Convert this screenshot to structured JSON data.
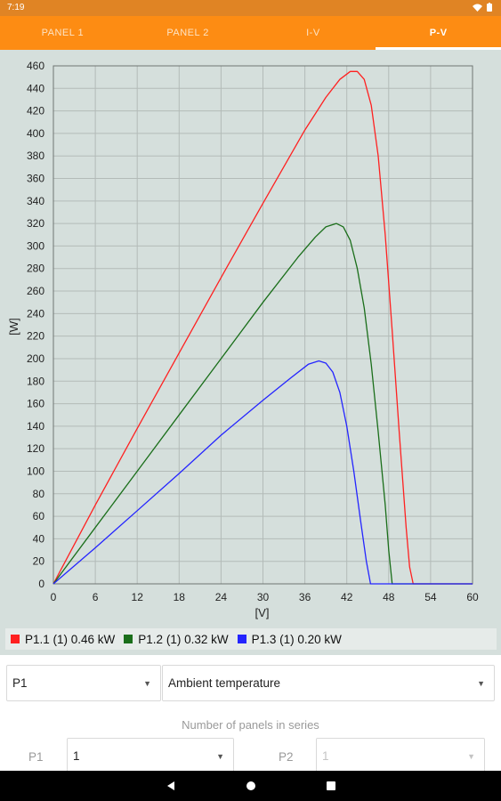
{
  "status": {
    "time": "7:19"
  },
  "tabs": [
    {
      "label": "PANEL 1",
      "active": false
    },
    {
      "label": "PANEL 2",
      "active": false
    },
    {
      "label": "I-V",
      "active": false
    },
    {
      "label": "P-V",
      "active": true
    }
  ],
  "chart_data": {
    "type": "line",
    "xlabel": "[V]",
    "ylabel": "[W]",
    "xlim": [
      0,
      60
    ],
    "ylim": [
      0,
      460
    ],
    "xticks": [
      0,
      6,
      12,
      18,
      24,
      30,
      36,
      42,
      48,
      54,
      60
    ],
    "yticks": [
      0,
      20,
      40,
      60,
      80,
      100,
      120,
      140,
      160,
      180,
      200,
      220,
      240,
      260,
      280,
      300,
      320,
      340,
      360,
      380,
      400,
      420,
      440,
      460
    ],
    "grid": true,
    "legend_position": "bottom",
    "series": [
      {
        "name": "P1.1 (1) 0.46 kW",
        "color": "#ff2020",
        "x": [
          0,
          6,
          12,
          18,
          24,
          30,
          36,
          39,
          41,
          42.5,
          43.5,
          44.5,
          45.5,
          46.5,
          47.5,
          48.5,
          49.5,
          50.5,
          51.0,
          51.5,
          60
        ],
        "y": [
          0,
          70,
          138,
          205,
          272,
          338,
          403,
          432,
          448,
          455,
          455,
          448,
          425,
          380,
          310,
          225,
          135,
          50,
          15,
          0,
          0
        ]
      },
      {
        "name": "P1.2 (1) 0.32 kW",
        "color": "#1a6e1a",
        "x": [
          0,
          6,
          12,
          18,
          24,
          30,
          35,
          37.5,
          39,
          40.5,
          41.5,
          42.5,
          43.5,
          44.5,
          45.5,
          46.5,
          47.5,
          48.0,
          48.5,
          60
        ],
        "y": [
          0,
          50,
          100,
          150,
          200,
          250,
          290,
          308,
          317,
          320,
          317,
          305,
          280,
          245,
          195,
          135,
          70,
          30,
          0,
          0
        ]
      },
      {
        "name": "P1.3 (1) 0.20 kW",
        "color": "#2424ff",
        "x": [
          0,
          6,
          12,
          18,
          24,
          30,
          34,
          36.5,
          38,
          39,
          40,
          41,
          42,
          43,
          44,
          44.8,
          45.4,
          60
        ],
        "y": [
          0,
          32,
          65,
          98,
          132,
          163,
          183,
          195,
          198,
          196,
          188,
          170,
          140,
          100,
          55,
          20,
          0,
          0
        ]
      }
    ]
  },
  "controls": {
    "panel_select": "P1",
    "parameter_select": "Ambient temperature",
    "series_label": "Number of panels in series",
    "p1_label": "P1",
    "p1_value": "1",
    "p2_label": "P2",
    "p2_value": "1"
  }
}
